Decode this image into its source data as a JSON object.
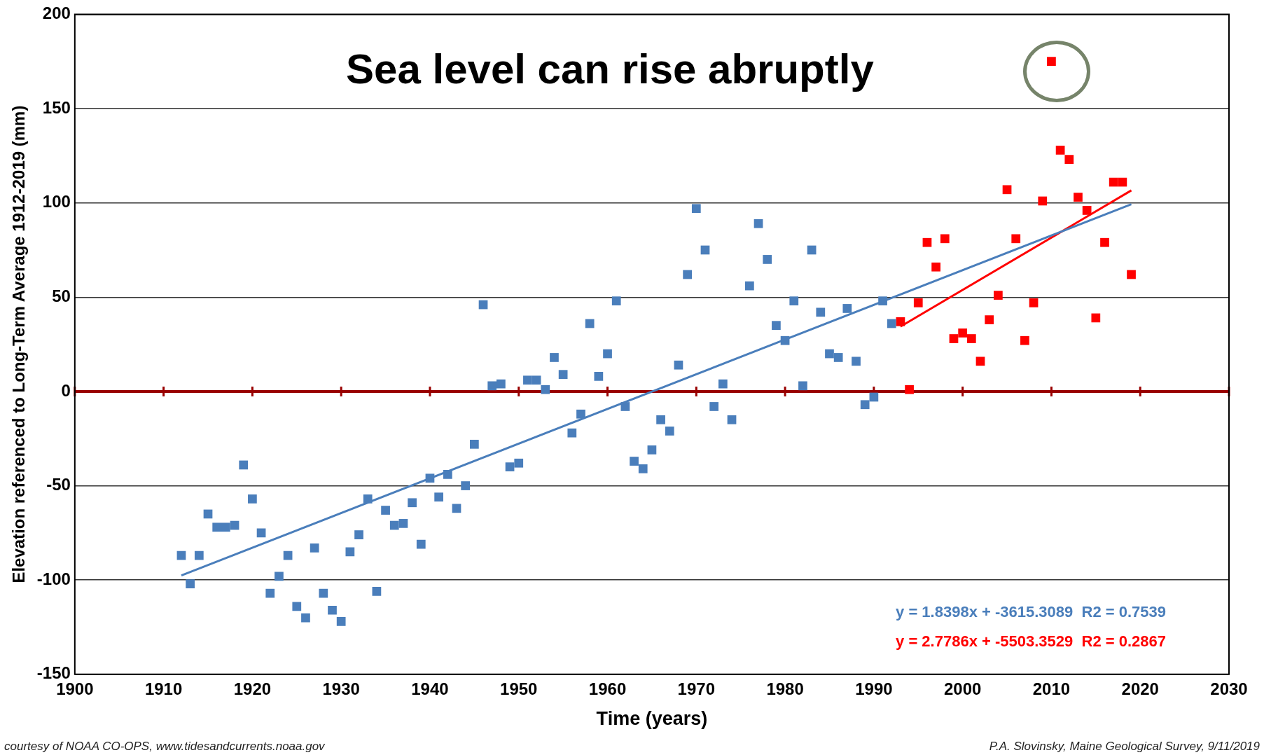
{
  "chart_data": {
    "type": "scatter",
    "title": "Sea level can rise abruptly",
    "xlabel": "Time (years)",
    "ylabel": "Elevation referenced to Long-Term Average 1912-2019 (mm)",
    "series": [
      {
        "color": "#4a7ebb",
        "x": [
          1912,
          1913,
          1914,
          1915,
          1916,
          1917,
          1918,
          1919,
          1920,
          1921,
          1922,
          1923,
          1924,
          1925,
          1926,
          1927,
          1928,
          1929,
          1930,
          1931,
          1932,
          1933,
          1934,
          1935,
          1936,
          1937,
          1938,
          1939,
          1940,
          1941,
          1942,
          1943,
          1944,
          1945,
          1946,
          1947,
          1948,
          1949,
          1950,
          1951,
          1952,
          1953,
          1954,
          1955,
          1956,
          1957,
          1958,
          1959,
          1960,
          1961,
          1962,
          1963,
          1964,
          1965,
          1966,
          1967,
          1968,
          1969,
          1970,
          1971,
          1972,
          1973,
          1974,
          1976,
          1977,
          1978,
          1979,
          1980,
          1981,
          1982,
          1983,
          1984,
          1985,
          1986,
          1987,
          1988,
          1989,
          1990,
          1991,
          1992
        ],
        "values": [
          -87,
          -102,
          -87,
          -65,
          -72,
          -72,
          -71,
          -39,
          -57,
          -75,
          -107,
          -98,
          -87,
          -114,
          -120,
          -83,
          -107,
          -116,
          -122,
          -85,
          -76,
          -57,
          -106,
          -63,
          -71,
          -70,
          -59,
          -81,
          -46,
          -56,
          -44,
          -62,
          -50,
          -28,
          46,
          3,
          4,
          -40,
          -38,
          6,
          6,
          1,
          18,
          9,
          -22,
          -12,
          36,
          8,
          20,
          48,
          -8,
          -37,
          -41,
          -31,
          -15,
          -21,
          14,
          62,
          97,
          75,
          -8,
          4,
          -15,
          56,
          89,
          70,
          35,
          27,
          48,
          3,
          75,
          42,
          20,
          18,
          44,
          16,
          -7,
          -3,
          48,
          36
        ]
      },
      {
        "color": "#ff0000",
        "x": [
          1993,
          1994,
          1995,
          1996,
          1997,
          1998,
          1999,
          2000,
          2001,
          2002,
          2003,
          2004,
          2005,
          2006,
          2007,
          2008,
          2009,
          2010,
          2011,
          2012,
          2013,
          2014,
          2015,
          2016,
          2017,
          2018,
          2019
        ],
        "values": [
          37,
          1,
          47,
          79,
          66,
          81,
          28,
          31,
          28,
          16,
          38,
          51,
          107,
          81,
          27,
          47,
          101,
          175,
          128,
          123,
          103,
          96,
          39,
          79,
          111,
          111,
          62
        ]
      },
      {
        "type": "line",
        "marker": "none",
        "color": "#4a7ebb",
        "x": [
          1912,
          2019
        ],
        "values": [
          -97.6,
          99.3
        ]
      },
      {
        "type": "line",
        "marker": "none",
        "color": "#ff0000",
        "x": [
          1993,
          2019
        ],
        "values": [
          34.4,
          106.6
        ]
      }
    ],
    "xlim": [
      1900,
      2030
    ],
    "xticks": [
      1900,
      1910,
      1920,
      1930,
      1940,
      1950,
      1960,
      1970,
      1980,
      1990,
      2000,
      2010,
      2020,
      2030
    ],
    "ylim": [
      -150,
      200
    ],
    "yticks": [
      -150,
      -100,
      -50,
      0,
      50,
      100,
      150,
      200
    ],
    "ref_lines": [
      {
        "axis": "y",
        "value": 0,
        "color": "#990000"
      }
    ],
    "annotations": [
      "y = 1.8398x + -3615.3089  R2 = 0.7539",
      "y = 2.7786x + -5503.3529  R2 = 0.2867",
      "courtesy of NOAA CO-OPS, www.tidesandcurrents.noaa.gov",
      "P.A. Slovinsky, Maine Geological Survey, 9/11/2019"
    ],
    "grid": "y",
    "legend": false,
    "marker": "square"
  }
}
